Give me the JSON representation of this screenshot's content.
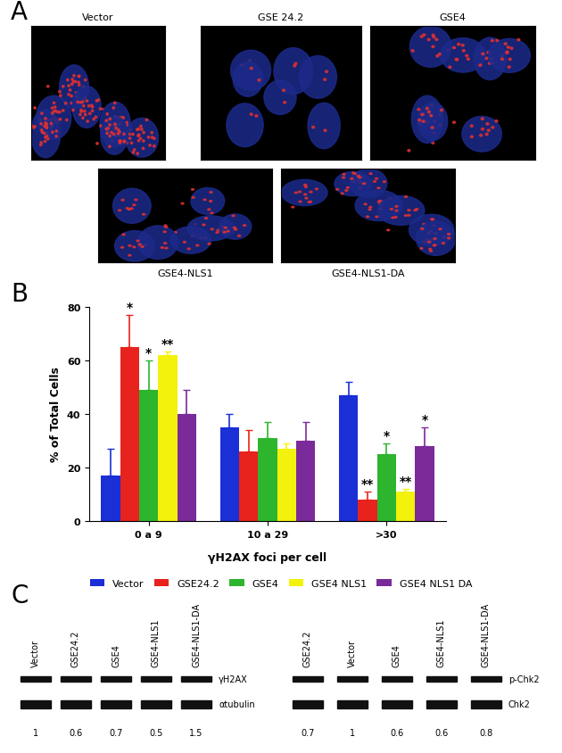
{
  "panel_labels": [
    "A",
    "B",
    "C"
  ],
  "images": {
    "captions": [
      "Vector",
      "GSE 24.2",
      "GSE4",
      "GSE4-NLS1",
      "GSE4-NLS1-DA"
    ]
  },
  "chart_data": {
    "type": "bar",
    "x_label": "γH2AX foci per cell",
    "y_label": "% of Total Cells",
    "categories": [
      "0 a 9",
      "10 a 29",
      ">30"
    ],
    "ylim": [
      0,
      80
    ],
    "yticks": [
      0,
      20,
      40,
      60,
      80
    ],
    "legend": "upper center",
    "series": [
      {
        "name": "Vector",
        "color": "#1a2fd6",
        "values": [
          17,
          35,
          47
        ],
        "errors": [
          10,
          5,
          5
        ],
        "significance": [
          null,
          null,
          null
        ]
      },
      {
        "name": "GSE24.2",
        "color": "#e8221c",
        "values": [
          65,
          26,
          8
        ],
        "errors": [
          12,
          8,
          3
        ],
        "significance": [
          "*",
          null,
          "**"
        ]
      },
      {
        "name": "GSE4",
        "color": "#2db52d",
        "values": [
          49,
          31,
          25
        ],
        "errors": [
          11,
          6,
          4
        ],
        "significance": [
          "*",
          null,
          "*"
        ]
      },
      {
        "name": "GSE4 NLS1",
        "color": "#f2f20c",
        "values": [
          62,
          27,
          11
        ],
        "errors": [
          1.5,
          2,
          1
        ],
        "significance": [
          "**",
          null,
          "**"
        ]
      },
      {
        "name": "GSE4 NLS1 DA",
        "color": "#7b2a9a",
        "values": [
          40,
          30,
          28
        ],
        "errors": [
          9,
          7,
          7
        ],
        "significance": [
          null,
          null,
          "*"
        ]
      }
    ]
  },
  "blots": [
    {
      "lanes": [
        "Vector",
        "GSE24.2",
        "GSE4",
        "GSE4-NLS1",
        "GSE4-NLS1-DA"
      ],
      "bands": [
        "γH2AX",
        "αtubulin"
      ],
      "quantification": [
        1,
        0.6,
        0.7,
        0.5,
        1.5
      ]
    },
    {
      "lanes": [
        "GSE24.2",
        "Vector",
        "GSE4",
        "GSE4-NLS1",
        "GSE4-NLS1-DA"
      ],
      "bands": [
        "p-Chk2",
        "Chk2"
      ],
      "quantification": [
        0.7,
        1,
        0.6,
        0.6,
        0.8
      ]
    }
  ]
}
